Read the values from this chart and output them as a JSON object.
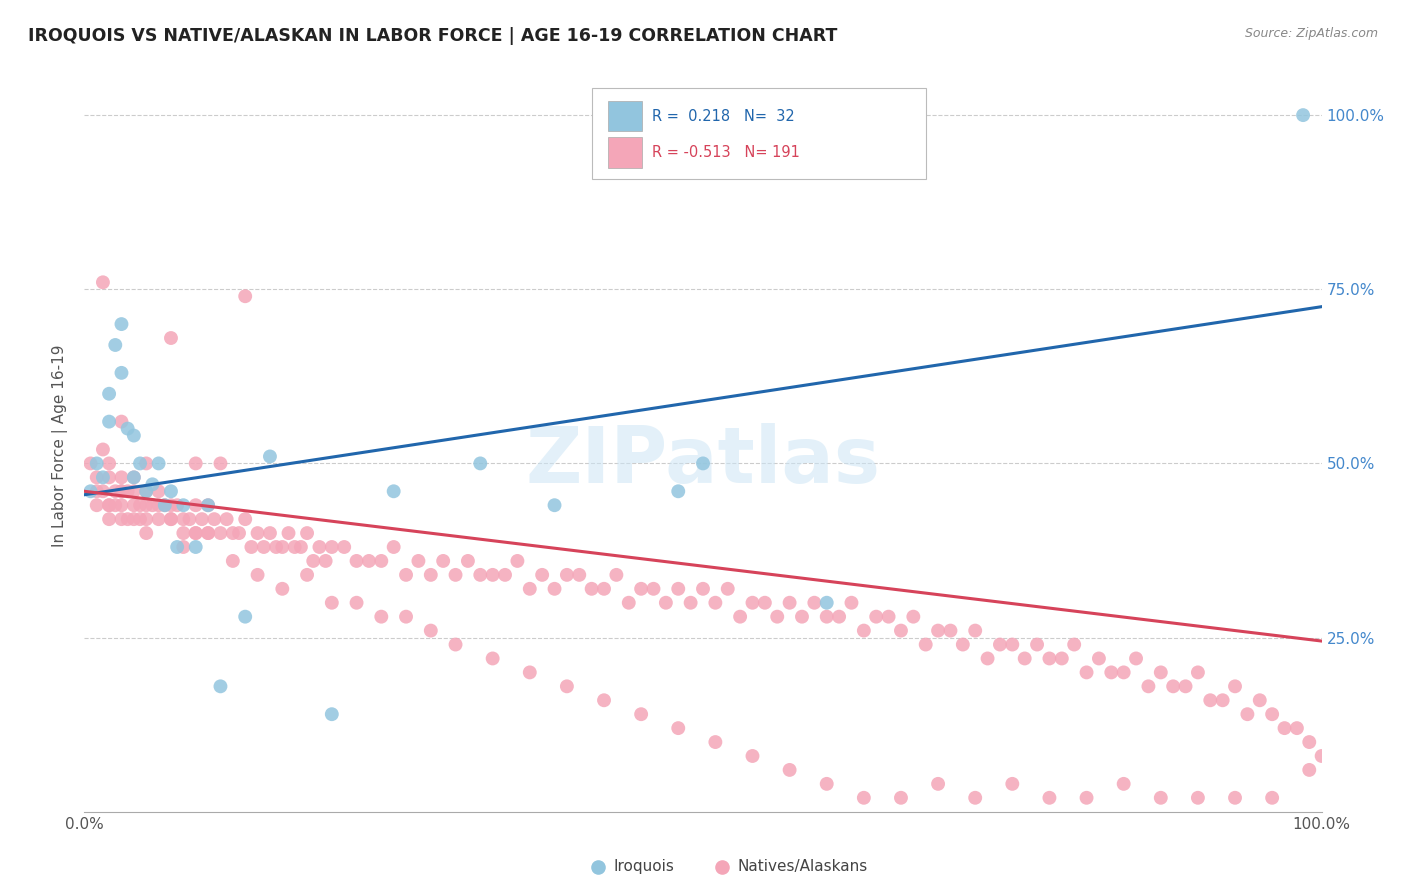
{
  "title": "IROQUOIS VS NATIVE/ALASKAN IN LABOR FORCE | AGE 16-19 CORRELATION CHART",
  "source": "Source: ZipAtlas.com",
  "ylabel": "In Labor Force | Age 16-19",
  "xlim": [
    0,
    1.0
  ],
  "ylim": [
    0,
    1.05
  ],
  "blue_color": "#92c5de",
  "pink_color": "#f4a6b8",
  "line_blue": "#2166ac",
  "line_pink": "#d6435a",
  "r1": 0.218,
  "n1": 32,
  "r2": -0.513,
  "n2": 191,
  "blue_line_start_y": 0.455,
  "blue_line_end_y": 0.725,
  "pink_line_start_y": 0.46,
  "pink_line_end_y": 0.245,
  "iroquois_x": [
    0.005,
    0.01,
    0.015,
    0.02,
    0.02,
    0.025,
    0.03,
    0.03,
    0.035,
    0.04,
    0.04,
    0.045,
    0.05,
    0.055,
    0.06,
    0.065,
    0.07,
    0.075,
    0.08,
    0.09,
    0.1,
    0.11,
    0.13,
    0.15,
    0.2,
    0.25,
    0.32,
    0.38,
    0.48,
    0.5,
    0.6,
    0.985
  ],
  "iroquois_y": [
    0.46,
    0.5,
    0.48,
    0.56,
    0.6,
    0.67,
    0.63,
    0.7,
    0.55,
    0.54,
    0.48,
    0.5,
    0.46,
    0.47,
    0.5,
    0.44,
    0.46,
    0.38,
    0.44,
    0.38,
    0.44,
    0.18,
    0.28,
    0.51,
    0.14,
    0.46,
    0.5,
    0.44,
    0.46,
    0.5,
    0.3,
    1.0
  ],
  "native_x": [
    0.005,
    0.01,
    0.01,
    0.015,
    0.015,
    0.02,
    0.02,
    0.02,
    0.02,
    0.025,
    0.025,
    0.03,
    0.03,
    0.03,
    0.03,
    0.035,
    0.035,
    0.04,
    0.04,
    0.04,
    0.045,
    0.045,
    0.05,
    0.05,
    0.05,
    0.055,
    0.06,
    0.06,
    0.065,
    0.07,
    0.07,
    0.075,
    0.08,
    0.08,
    0.085,
    0.09,
    0.09,
    0.095,
    0.1,
    0.1,
    0.105,
    0.11,
    0.115,
    0.12,
    0.125,
    0.13,
    0.135,
    0.14,
    0.145,
    0.15,
    0.155,
    0.16,
    0.165,
    0.17,
    0.175,
    0.18,
    0.185,
    0.19,
    0.195,
    0.2,
    0.21,
    0.22,
    0.23,
    0.24,
    0.25,
    0.26,
    0.27,
    0.28,
    0.29,
    0.3,
    0.31,
    0.32,
    0.33,
    0.34,
    0.35,
    0.36,
    0.37,
    0.38,
    0.39,
    0.4,
    0.41,
    0.42,
    0.43,
    0.44,
    0.45,
    0.46,
    0.47,
    0.48,
    0.49,
    0.5,
    0.51,
    0.52,
    0.53,
    0.54,
    0.55,
    0.56,
    0.57,
    0.58,
    0.59,
    0.6,
    0.61,
    0.62,
    0.63,
    0.64,
    0.65,
    0.66,
    0.67,
    0.68,
    0.69,
    0.7,
    0.71,
    0.72,
    0.73,
    0.74,
    0.75,
    0.76,
    0.77,
    0.78,
    0.79,
    0.8,
    0.81,
    0.82,
    0.83,
    0.84,
    0.85,
    0.86,
    0.87,
    0.88,
    0.89,
    0.9,
    0.91,
    0.92,
    0.93,
    0.94,
    0.95,
    0.96,
    0.97,
    0.98,
    0.99,
    1.0,
    0.01,
    0.02,
    0.03,
    0.04,
    0.05,
    0.06,
    0.07,
    0.08,
    0.09,
    0.1,
    0.12,
    0.14,
    0.16,
    0.18,
    0.2,
    0.22,
    0.24,
    0.26,
    0.28,
    0.3,
    0.33,
    0.36,
    0.39,
    0.42,
    0.45,
    0.48,
    0.51,
    0.54,
    0.57,
    0.6,
    0.63,
    0.66,
    0.69,
    0.72,
    0.75,
    0.78,
    0.81,
    0.84,
    0.87,
    0.9,
    0.93,
    0.96,
    0.99,
    0.015,
    0.03,
    0.05,
    0.07,
    0.09,
    0.11,
    0.13
  ],
  "native_y": [
    0.5,
    0.48,
    0.44,
    0.52,
    0.46,
    0.5,
    0.48,
    0.44,
    0.42,
    0.46,
    0.44,
    0.48,
    0.46,
    0.44,
    0.42,
    0.46,
    0.42,
    0.48,
    0.46,
    0.42,
    0.44,
    0.42,
    0.46,
    0.44,
    0.4,
    0.44,
    0.46,
    0.42,
    0.44,
    0.44,
    0.42,
    0.44,
    0.42,
    0.4,
    0.42,
    0.44,
    0.4,
    0.42,
    0.44,
    0.4,
    0.42,
    0.4,
    0.42,
    0.4,
    0.4,
    0.42,
    0.38,
    0.4,
    0.38,
    0.4,
    0.38,
    0.38,
    0.4,
    0.38,
    0.38,
    0.4,
    0.36,
    0.38,
    0.36,
    0.38,
    0.38,
    0.36,
    0.36,
    0.36,
    0.38,
    0.34,
    0.36,
    0.34,
    0.36,
    0.34,
    0.36,
    0.34,
    0.34,
    0.34,
    0.36,
    0.32,
    0.34,
    0.32,
    0.34,
    0.34,
    0.32,
    0.32,
    0.34,
    0.3,
    0.32,
    0.32,
    0.3,
    0.32,
    0.3,
    0.32,
    0.3,
    0.32,
    0.28,
    0.3,
    0.3,
    0.28,
    0.3,
    0.28,
    0.3,
    0.28,
    0.28,
    0.3,
    0.26,
    0.28,
    0.28,
    0.26,
    0.28,
    0.24,
    0.26,
    0.26,
    0.24,
    0.26,
    0.22,
    0.24,
    0.24,
    0.22,
    0.24,
    0.22,
    0.22,
    0.24,
    0.2,
    0.22,
    0.2,
    0.2,
    0.22,
    0.18,
    0.2,
    0.18,
    0.18,
    0.2,
    0.16,
    0.16,
    0.18,
    0.14,
    0.16,
    0.14,
    0.12,
    0.12,
    0.1,
    0.08,
    0.46,
    0.44,
    0.46,
    0.44,
    0.42,
    0.44,
    0.42,
    0.38,
    0.4,
    0.4,
    0.36,
    0.34,
    0.32,
    0.34,
    0.3,
    0.3,
    0.28,
    0.28,
    0.26,
    0.24,
    0.22,
    0.2,
    0.18,
    0.16,
    0.14,
    0.12,
    0.1,
    0.08,
    0.06,
    0.04,
    0.02,
    0.02,
    0.04,
    0.02,
    0.04,
    0.02,
    0.02,
    0.04,
    0.02,
    0.02,
    0.02,
    0.02,
    0.06,
    0.76,
    0.56,
    0.5,
    0.68,
    0.5,
    0.5,
    0.74
  ]
}
